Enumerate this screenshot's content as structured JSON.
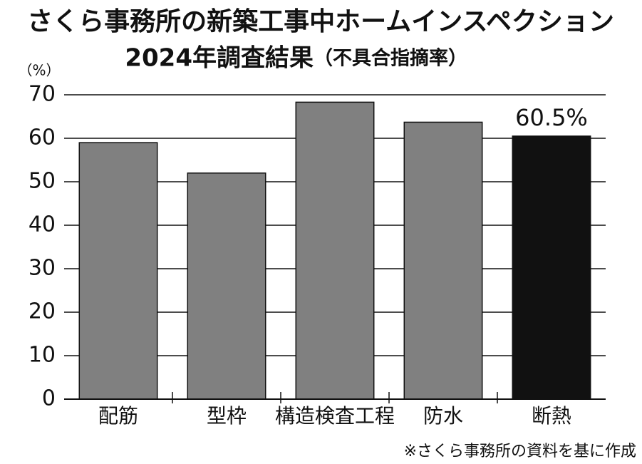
{
  "chart_data": {
    "type": "bar",
    "title": "さくら事務所の新築工事中ホームインスペクション",
    "subtitle": "2024年調査結果",
    "subtitle_note": "（不具合指摘率）",
    "y_unit": "（%）",
    "source": "※さくら事務所の資料を基に作成",
    "categories": [
      "配筋",
      "型枠",
      "構造検査工程",
      "防水",
      "断熱"
    ],
    "values": [
      59,
      52,
      68.3,
      63.7,
      60.5
    ],
    "value_labels": [
      null,
      null,
      null,
      null,
      "60.5%"
    ],
    "colors": [
      "#808080",
      "#808080",
      "#808080",
      "#808080",
      "#111111"
    ],
    "ylim": [
      0,
      70
    ],
    "yticks": [
      0,
      10,
      20,
      30,
      40,
      50,
      60,
      70
    ],
    "grid": true
  }
}
